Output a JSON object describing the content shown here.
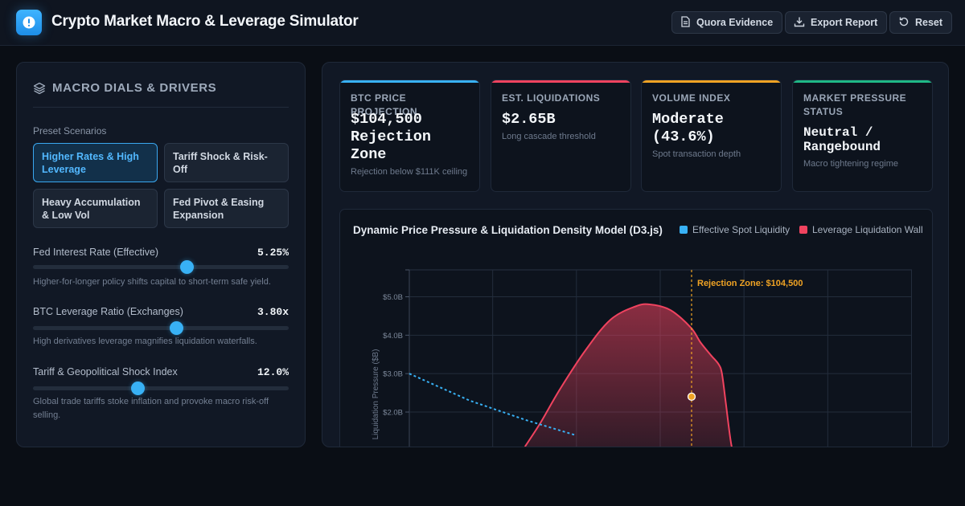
{
  "app": {
    "title": "Crypto Market Macro & Leverage Simulator",
    "logo_icon": "alert-circle-icon",
    "accent": "#38b1f5"
  },
  "header": {
    "buttons": [
      {
        "label": "Quora Evidence",
        "icon": "document-icon"
      },
      {
        "label": "Export Report",
        "icon": "download-icon"
      },
      {
        "label": "Reset",
        "icon": "reset-icon"
      }
    ]
  },
  "macro": {
    "title": "MACRO DIALS & DRIVERS",
    "icon": "layers-icon",
    "presets_label": "Preset Scenarios",
    "presets": [
      {
        "label": "Higher Rates & High Leverage",
        "active": true
      },
      {
        "label": "Tariff Shock & Risk-Off",
        "active": false
      },
      {
        "label": "Heavy Accumulation & Low Vol",
        "active": false
      },
      {
        "label": "Fed Pivot & Easing Expansion",
        "active": false
      }
    ],
    "sliders": [
      {
        "label": "Fed Interest Rate (Effective)",
        "value": "5.25%",
        "level": 0.6,
        "desc": "Higher-for-longer policy shifts capital to short-term safe yield."
      },
      {
        "label": "BTC Leverage Ratio (Exchanges)",
        "value": "3.80x",
        "level": 0.56,
        "desc": "High derivatives leverage magnifies liquidation waterfalls."
      },
      {
        "label": "Tariff & Geopolitical Shock Index",
        "value": "12.0%",
        "level": 0.41,
        "desc": "Global trade tariffs stoke inflation and provoke macro risk-off selling."
      }
    ]
  },
  "kpis": [
    {
      "label": "BTC PRICE PROJECTION",
      "value": "$104,500 Rejection Zone",
      "sub": "Rejection below $111K ceiling",
      "color": "#38b1f5"
    },
    {
      "label": "EST. LIQUIDATIONS",
      "value": "$2.65B",
      "sub": "Long cascade threshold",
      "color": "#f0435f"
    },
    {
      "label": "VOLUME INDEX",
      "value": "Moderate (43.6%)",
      "sub": "Spot transaction depth",
      "color": "#f0a324"
    },
    {
      "label": "MARKET PRESSURE STATUS",
      "value": "Neutral / Rangebound",
      "sub": "Macro tightening regime",
      "color": "#1fb886"
    }
  ],
  "chart": {
    "title": "Dynamic Price Pressure & Liquidation Density Model (D3.js)",
    "legend": [
      {
        "label": "Effective Spot Liquidity",
        "color": "#38b1f5"
      },
      {
        "label": "Leverage Liquidation Wall",
        "color": "#f0435f"
      }
    ]
  },
  "chart_data": {
    "type": "area",
    "ylabel": "Liquidation Pressure ($B)",
    "yticks": [
      "$2.0B",
      "$3.0B",
      "$4.0B",
      "$5.0B"
    ],
    "ylim": [
      0.6,
      5.7
    ],
    "grid": true,
    "annotation": {
      "label": "Rejection Zone: $104,500",
      "color": "#f0a324"
    },
    "series": [
      {
        "name": "Leverage Liquidation Wall",
        "style": "filled-curve",
        "color": "#f0435f",
        "points": [
          [
            0.23,
            1.1
          ],
          [
            0.26,
            1.7
          ],
          [
            0.3,
            2.6
          ],
          [
            0.35,
            3.6
          ],
          [
            0.4,
            4.4
          ],
          [
            0.45,
            4.75
          ],
          [
            0.48,
            4.8
          ],
          [
            0.52,
            4.65
          ],
          [
            0.56,
            4.2
          ],
          [
            0.58,
            3.8
          ],
          [
            0.6,
            3.48
          ],
          [
            0.615,
            3.25
          ],
          [
            0.622,
            3.0
          ],
          [
            0.63,
            2.2
          ],
          [
            0.64,
            1.2
          ],
          [
            0.65,
            0.6
          ]
        ]
      },
      {
        "name": "Effective Spot Liquidity",
        "style": "dashed-line",
        "color": "#38b1f5",
        "points": [
          [
            0.0,
            3.0
          ],
          [
            0.12,
            2.3
          ],
          [
            0.23,
            1.8
          ],
          [
            0.33,
            1.4
          ]
        ]
      }
    ],
    "marker_value": 2.4
  }
}
